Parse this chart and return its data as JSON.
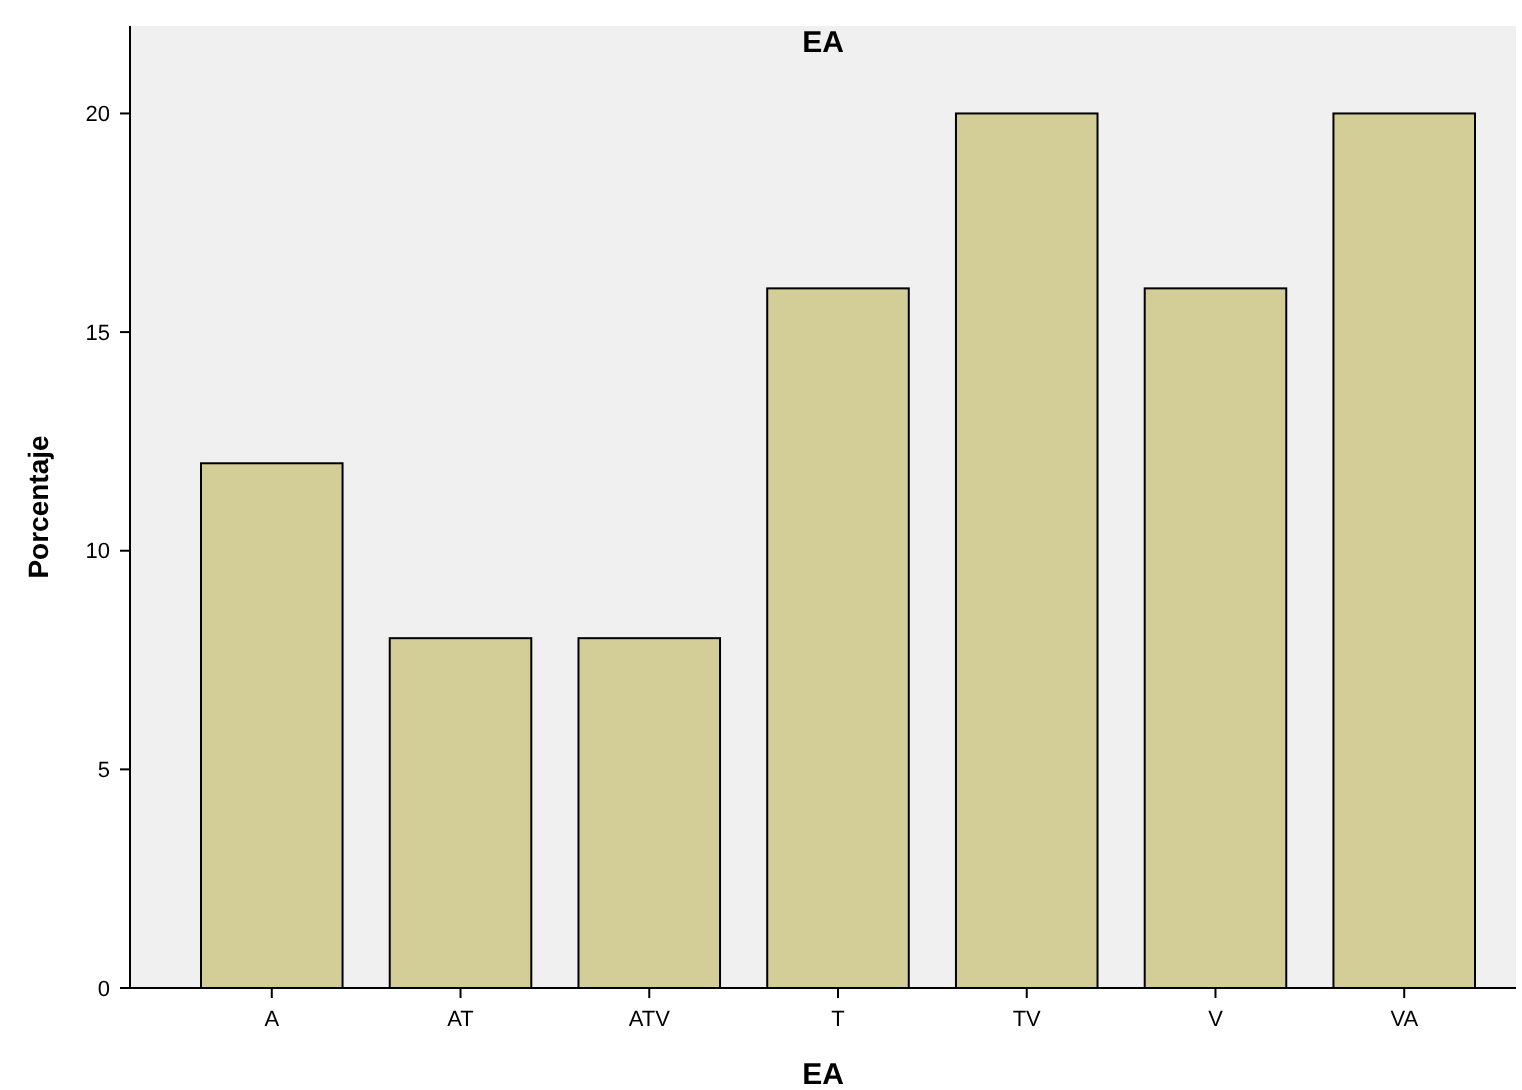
{
  "chart_data": {
    "type": "bar",
    "title": "EA",
    "xlabel": "EA",
    "ylabel": "Porcentaje",
    "categories": [
      "A",
      "AT",
      "ATV",
      "T",
      "TV",
      "V",
      "VA"
    ],
    "values": [
      12,
      8,
      8,
      16,
      20,
      16,
      20
    ],
    "color": "#d3ce97",
    "ylim": [
      0,
      22
    ],
    "yticks": [
      0,
      5,
      10,
      15,
      20
    ],
    "grid": false
  }
}
